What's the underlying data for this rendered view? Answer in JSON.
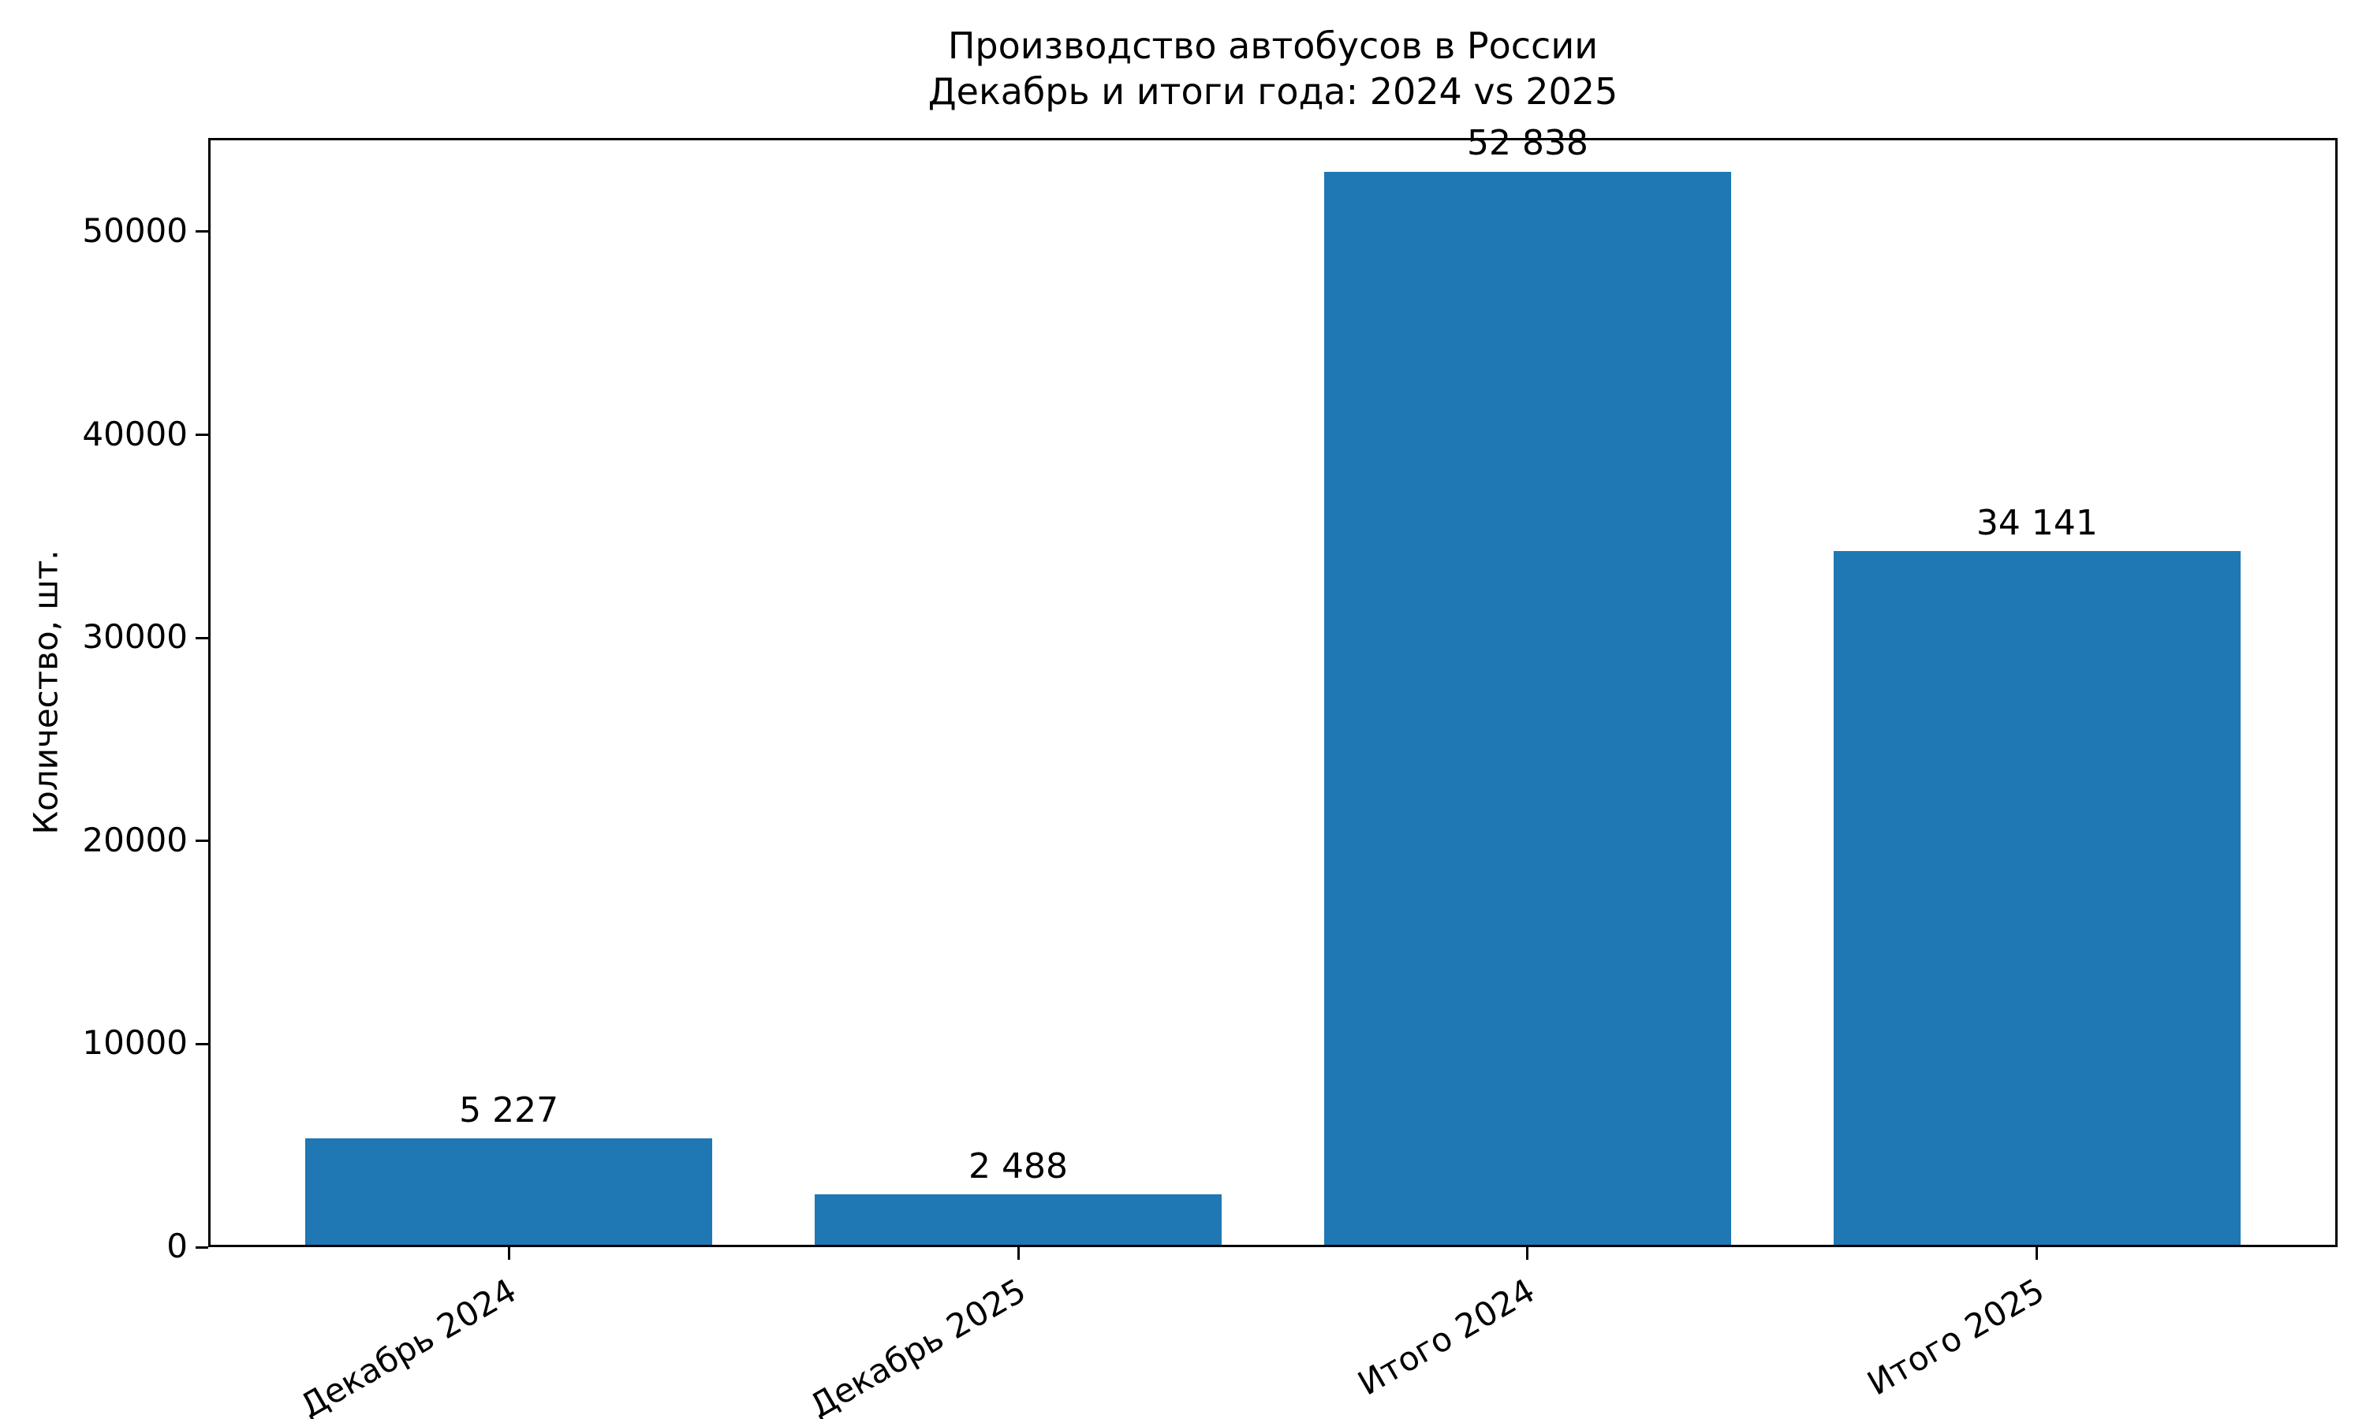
{
  "chart_data": {
    "type": "bar",
    "title": "Производство автобусов в России",
    "subtitle": "Декабрь и итоги года: 2024 vs 2025",
    "categories": [
      "Декабрь 2024",
      "Декабрь 2025",
      "Итого 2024",
      "Итого 2025"
    ],
    "values": [
      5227,
      2488,
      52838,
      34141
    ],
    "value_labels": [
      "5 227",
      "2 488",
      "52 838",
      "34 141"
    ],
    "xlabel": "",
    "ylabel": "Количество, шт.",
    "ylim": [
      0,
      54500
    ],
    "yticks": [
      0,
      10000,
      20000,
      30000,
      40000,
      50000
    ],
    "bar_color": "#1f77b4",
    "text_color": "#000000",
    "grid": false,
    "legend_position": "none",
    "x_tick_rotation_deg": 30
  }
}
